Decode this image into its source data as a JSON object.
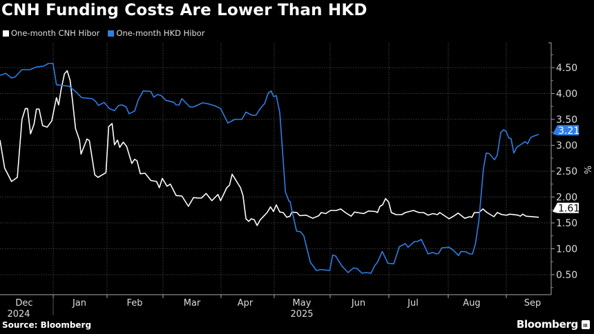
{
  "chart_data": {
    "type": "line",
    "title": "CNH Funding Costs Are Lower Than HKD",
    "xlabel": "",
    "ylabel": "%",
    "x_unit": "days since 2024-12-01",
    "ylim": [
      0.15,
      5.0
    ],
    "yticks": [
      "4.50",
      "4.00",
      "3.50",
      "3.00",
      "2.50",
      "2.00",
      "1.50",
      "1.00",
      "0.50"
    ],
    "ytick_values": [
      4.5,
      4.0,
      3.5,
      3.0,
      2.5,
      2.0,
      1.5,
      1.0,
      0.5
    ],
    "grid": true,
    "legend_position": "top-left",
    "x_months": [
      "Dec",
      "Jan",
      "Feb",
      "Mar",
      "Apr",
      "May",
      "Jun",
      "Jul",
      "Aug",
      "Sep"
    ],
    "x_years": [
      "2024",
      "2025"
    ],
    "series": [
      {
        "name": "One-month CNH Hibor",
        "color": "#ffffff",
        "last_value_label": "1.61",
        "x": [
          2.4,
          4.9,
          8.6,
          11.7,
          14.2,
          16.0,
          17.2,
          18.8,
          20.7,
          22.0,
          23.4,
          25.3,
          27.7,
          30.2,
          32.7,
          33.9,
          35.2,
          37.0,
          38.5,
          40.1,
          41.4,
          43.0,
          45.1,
          45.9,
          49.1,
          50.4,
          53.3,
          55.0,
          57.4,
          59.3,
          60.8,
          62.6,
          63.9,
          65.5,
          66.7,
          68.6,
          70.4,
          73.2,
          74.7,
          76.0,
          77.8,
          80.3,
          83.4,
          86.5,
          88.0,
          89.6,
          92.1,
          93.9,
          97.0,
          100.1,
          103.6,
          106.3,
          108.8,
          110.6,
          113.1,
          116.2,
          119.5,
          120.9,
          124.2,
          125.7,
          127.1,
          131.6,
          132.9,
          134.5,
          136.0,
          137.4,
          139.0,
          140.5,
          142.2,
          145.9,
          147.7,
          149.3,
          150.8,
          152.7,
          154.5,
          156.4,
          158.2,
          159.2,
          161.9,
          163.4,
          166.9,
          170.4,
          173.7,
          174.9,
          177.4,
          179.9,
          183.0,
          185.4,
          187.9,
          191.0,
          192.8,
          197.8,
          200.3,
          204.0,
          205.2,
          206.5,
          207.9,
          209.5,
          211.2,
          212.6,
          215.1,
          218.2,
          220.1,
          224.4,
          227.5,
          229.9,
          232.4,
          234.9,
          237.4,
          238.6,
          243.6,
          246.0,
          248.5,
          252.0,
          254.7,
          255.9,
          257.2,
          259.6,
          261.8,
          264.0,
          267.7,
          269.5,
          272.0,
          274.5,
          276.3,
          280.7,
          281.9,
          283.1,
          285.0,
          291.8
        ],
        "values": [
          3.1,
          2.56,
          2.3,
          2.38,
          3.5,
          3.71,
          3.71,
          3.22,
          3.41,
          3.7,
          3.7,
          3.38,
          3.35,
          3.47,
          3.92,
          3.78,
          4.07,
          4.38,
          4.44,
          4.25,
          3.85,
          3.32,
          3.1,
          2.83,
          3.12,
          3.09,
          2.43,
          2.38,
          2.43,
          2.47,
          3.36,
          3.42,
          3.01,
          3.1,
          2.96,
          3.06,
          2.98,
          2.65,
          2.73,
          2.7,
          2.45,
          2.46,
          2.32,
          2.3,
          2.18,
          2.36,
          2.21,
          2.25,
          2.03,
          2.02,
          1.82,
          1.99,
          1.98,
          1.98,
          2.07,
          1.93,
          2.05,
          1.93,
          2.18,
          2.23,
          2.44,
          2.18,
          2.03,
          1.58,
          1.53,
          1.58,
          1.56,
          1.45,
          1.56,
          1.7,
          1.81,
          1.72,
          1.85,
          1.71,
          1.7,
          1.61,
          1.63,
          1.71,
          1.7,
          1.64,
          1.65,
          1.59,
          1.64,
          1.7,
          1.68,
          1.74,
          1.74,
          1.77,
          1.7,
          1.63,
          1.71,
          1.68,
          1.73,
          1.72,
          1.7,
          1.82,
          1.85,
          1.97,
          1.9,
          1.7,
          1.66,
          1.66,
          1.7,
          1.74,
          1.7,
          1.7,
          1.65,
          1.68,
          1.66,
          1.7,
          1.58,
          1.63,
          1.69,
          1.59,
          1.62,
          1.61,
          1.7,
          1.7,
          1.77,
          1.7,
          1.62,
          1.7,
          1.66,
          1.65,
          1.67,
          1.65,
          1.63,
          1.67,
          1.63,
          1.61
        ]
      },
      {
        "name": "One-month HKD Hibor",
        "color": "#2f7ee6",
        "last_value_label": "3.21",
        "x": [
          2.4,
          5.5,
          8.6,
          10.5,
          14.2,
          18.5,
          21.6,
          25.9,
          28.4,
          30.9,
          32.7,
          37.0,
          39.5,
          43.2,
          46.3,
          51.9,
          53.7,
          55.3,
          58.3,
          61.1,
          63.9,
          66.1,
          68.0,
          70.2,
          71.7,
          74.7,
          76.6,
          79.3,
          83.4,
          85.0,
          87.1,
          89.0,
          91.4,
          95.8,
          97.0,
          98.6,
          100.1,
          104.4,
          106.3,
          111.2,
          114.3,
          118.0,
          120.9,
          124.8,
          128.5,
          132.3,
          134.5,
          137.8,
          139.9,
          142.2,
          144.6,
          146.5,
          148.1,
          149.3,
          150.8,
          152.7,
          155.7,
          157.6,
          158.2,
          159.2,
          161.7,
          163.8,
          165.6,
          169.1,
          172.4,
          174.9,
          179.5,
          181.1,
          182.7,
          186.0,
          189.4,
          192.2,
          194.1,
          196.8,
          199.0,
          201.7,
          203.6,
          205.2,
          207.7,
          210.8,
          213.9,
          216.9,
          220.1,
          221.6,
          225.0,
          226.5,
          228.7,
          232.4,
          234.9,
          236.8,
          238.0,
          239.8,
          243.6,
          246.0,
          248.7,
          250.0,
          252.8,
          254.7,
          256.2,
          257.8,
          259.6,
          262.1,
          263.6,
          265.2,
          268.0,
          269.5,
          271.4,
          273.0,
          274.2,
          275.7,
          276.9,
          278.4,
          280.0,
          284.4,
          285.8,
          287.4,
          289.3,
          291.8
        ],
        "values": [
          4.35,
          4.39,
          4.3,
          4.32,
          4.46,
          4.46,
          4.51,
          4.53,
          4.58,
          4.58,
          4.17,
          4.15,
          4.14,
          4.03,
          3.92,
          3.9,
          3.85,
          3.77,
          3.83,
          3.71,
          3.67,
          3.77,
          3.78,
          3.74,
          3.61,
          3.66,
          3.87,
          4.05,
          4.04,
          3.93,
          3.98,
          3.96,
          3.87,
          3.83,
          3.78,
          3.78,
          3.9,
          3.74,
          3.74,
          3.82,
          3.8,
          3.76,
          3.71,
          3.43,
          3.5,
          3.5,
          3.64,
          3.58,
          3.58,
          3.71,
          3.81,
          4.01,
          4.05,
          3.94,
          3.96,
          3.63,
          2.1,
          1.92,
          1.92,
          1.74,
          1.34,
          1.33,
          1.25,
          0.74,
          0.58,
          0.6,
          0.58,
          0.88,
          0.86,
          0.67,
          0.54,
          0.63,
          0.62,
          0.53,
          0.54,
          0.53,
          0.67,
          0.74,
          0.95,
          0.72,
          0.71,
          1.04,
          1.1,
          1.03,
          1.14,
          1.14,
          1.18,
          0.9,
          0.93,
          0.9,
          0.91,
          1.02,
          1.03,
          0.97,
          0.87,
          0.95,
          0.94,
          0.9,
          0.9,
          1.1,
          1.54,
          2.56,
          2.85,
          2.84,
          2.72,
          2.81,
          3.25,
          3.3,
          3.27,
          3.14,
          3.13,
          2.85,
          2.96,
          3.07,
          3.03,
          3.15,
          3.18,
          3.21
        ]
      }
    ]
  },
  "footer": {
    "source": "Source: Bloomberg",
    "logo": "Bloomberg"
  }
}
